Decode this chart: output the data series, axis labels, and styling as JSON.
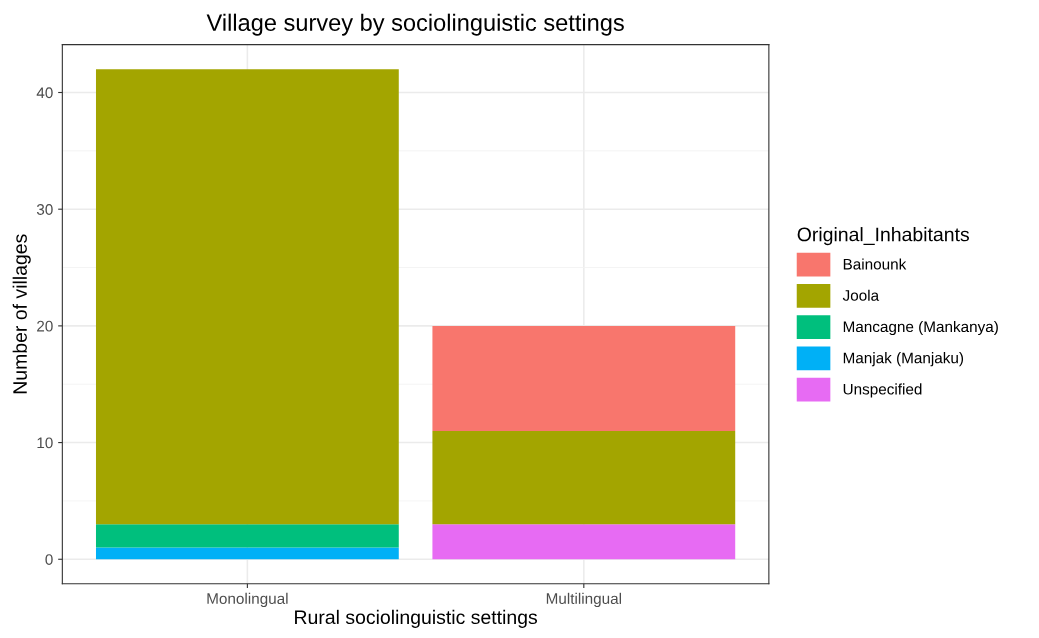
{
  "chart_data": {
    "type": "bar",
    "title": "Village survey by sociolinguistic settings",
    "xlabel": "Rural sociolinguistic settings",
    "ylabel": "Number of villages",
    "legend_title": "Original_Inhabitants",
    "categories": [
      "Monolingual",
      "Multilingual"
    ],
    "stacked": true,
    "series": [
      {
        "name": "Unspecified",
        "color": "#e76bf3",
        "values": [
          0,
          3
        ]
      },
      {
        "name": "Manjak (Manjaku)",
        "color": "#00b0f6",
        "values": [
          1,
          0
        ]
      },
      {
        "name": "Mancagne (Mankanya)",
        "color": "#00bf7d",
        "values": [
          2,
          0
        ]
      },
      {
        "name": "Joola",
        "color": "#a3a500",
        "values": [
          39,
          8
        ]
      },
      {
        "name": "Bainounk",
        "color": "#f8766d",
        "values": [
          0,
          9
        ]
      }
    ],
    "ylim": [
      -2.1,
      44.1
    ],
    "yticks": [
      0,
      10,
      20,
      30,
      40
    ],
    "grid": true,
    "legend": "right"
  }
}
